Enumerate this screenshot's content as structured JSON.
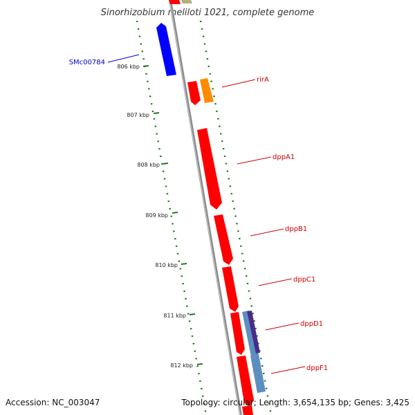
{
  "header": {
    "title": "Sinorhizobium meliloti 1021, complete genome"
  },
  "footer": {
    "accession": "Accession: NC_003047",
    "summary": "Topology: circular; Length: 3,654,135 bp; Genes: 3,425"
  },
  "map": {
    "ticks": [
      "806 kbp",
      "807 kbp",
      "808 kbp",
      "809 kbp",
      "810 kbp",
      "811 kbp",
      "812 kbp"
    ],
    "genes": [
      {
        "label": "SMc00784",
        "color": "#0000cc",
        "fill": "#0000ff",
        "strand": "-"
      },
      {
        "label": "rirA",
        "color": "#cc0000",
        "fill": "#ff8c00",
        "strand": "+"
      },
      {
        "label": "dppA1",
        "color": "#cc0000",
        "fill": "#ff0000",
        "strand": "+"
      },
      {
        "label": "dppB1",
        "color": "#cc0000",
        "fill": "#ff0000",
        "strand": "+"
      },
      {
        "label": "dppC1",
        "color": "#cc0000",
        "fill": "#ff0000",
        "strand": "+"
      },
      {
        "label": "dppD1",
        "color": "#cc0000",
        "fill": "#ff0000",
        "strand": "+"
      },
      {
        "label": "dppF1",
        "color": "#cc0000",
        "fill": "#ff0000",
        "strand": "+"
      }
    ]
  },
  "colors": {
    "backbone": "#8c8c8c",
    "gc_dots": "#1a7a1a",
    "cds_red": "#ff0000",
    "orange": "#ff8c00",
    "blue": "#0000ff",
    "steel_blue": "#5b8fbf",
    "purple": "#4b2a8a",
    "olive": "#b5b07a"
  }
}
